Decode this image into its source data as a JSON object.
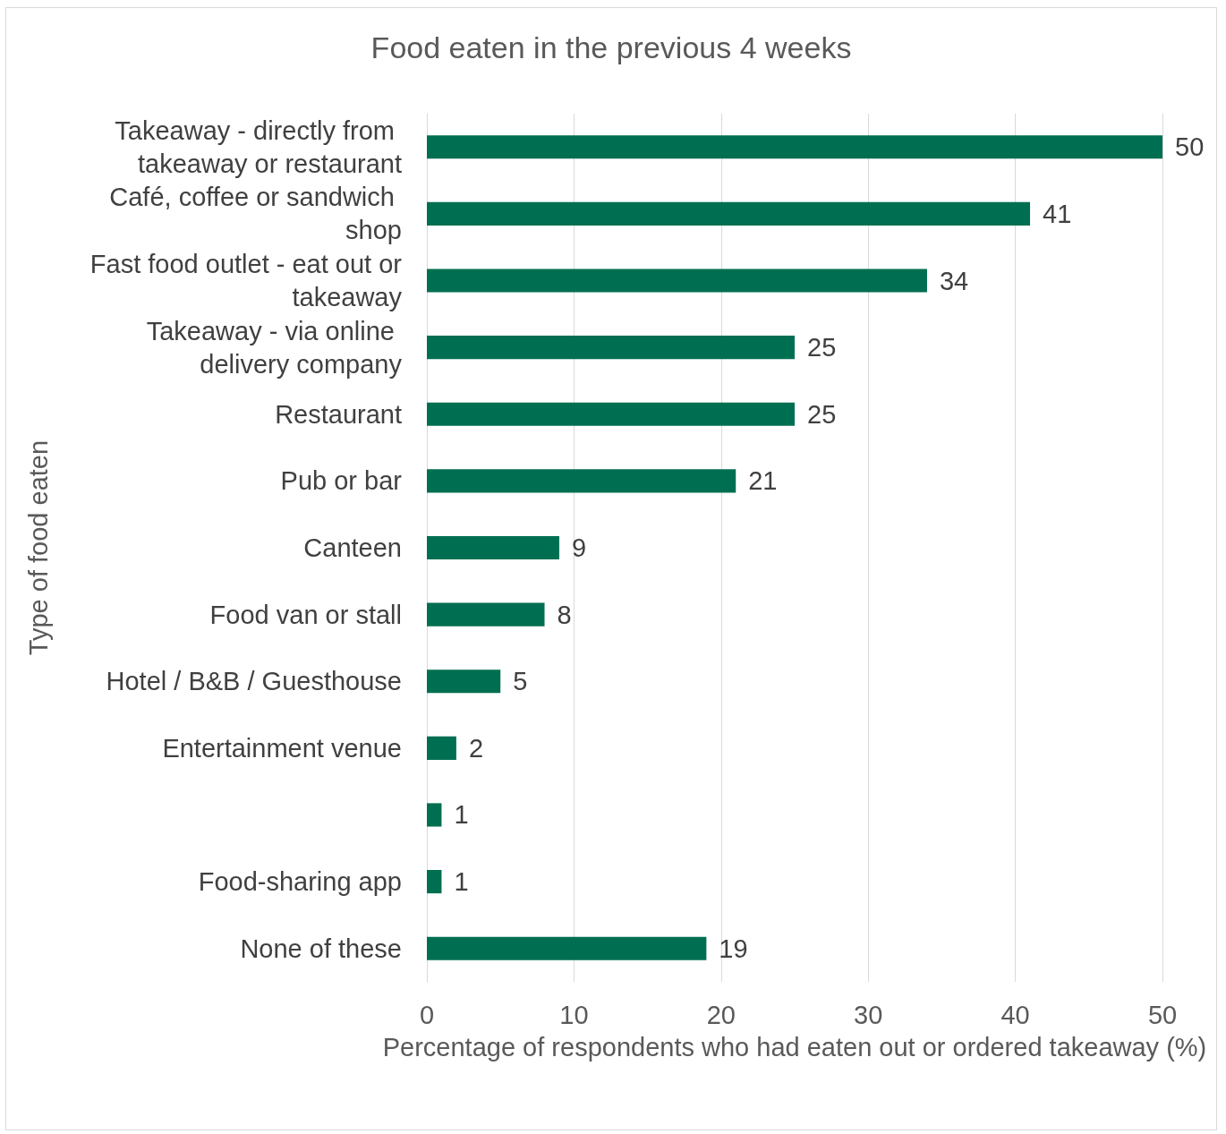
{
  "chart_data": {
    "type": "bar",
    "orientation": "horizontal",
    "title": "Food eaten in the previous 4 weeks",
    "xlabel": "Percentage of respondents who had eaten out or ordered takeaway (%)",
    "ylabel": "Type of food eaten",
    "categories": [
      "Takeaway - directly from takeaway or restaurant",
      "Café, coffee or sandwich shop",
      "Fast food outlet - eat out or takeaway",
      "Takeaway - via online delivery company",
      "Restaurant",
      "Pub or bar",
      "Canteen",
      "Food van or stall",
      "Hotel / B&B / Guesthouse",
      "Entertainment venue",
      null,
      "Food-sharing app",
      "None of these"
    ],
    "values": [
      50,
      41,
      34,
      25,
      25,
      21,
      9,
      8,
      5,
      2,
      1,
      1,
      19
    ],
    "color": "#006f51",
    "xlim": [
      0,
      50
    ],
    "xticks": [
      0,
      10,
      20,
      30,
      40,
      50
    ],
    "grid": "x",
    "data_labels": true
  }
}
